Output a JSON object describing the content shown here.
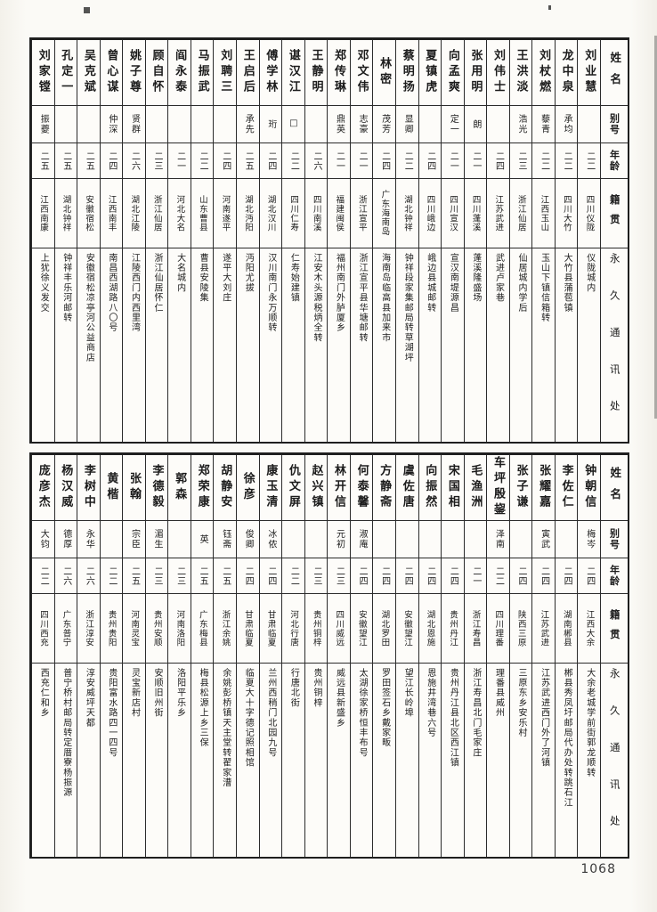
{
  "page": {
    "number": "1068",
    "headers": {
      "name": "姓名",
      "alias": "别号",
      "age": "年龄",
      "native_place": "籍贯",
      "address": "永久通讯处"
    }
  },
  "table_top": {
    "persons": [
      {
        "name": "刘业慧",
        "alias": "",
        "age": "二二",
        "native_place": "四川仪陇",
        "address": "仪陇城内"
      },
      {
        "name": "龙中泉",
        "alias": "承均",
        "age": "二二",
        "native_place": "四川大竹",
        "address": "大竹县蒲苞镇"
      },
      {
        "name": "刘杖燃",
        "alias": "藜青",
        "age": "二二",
        "native_place": "江西玉山",
        "address": "玉山下镇信箱转"
      },
      {
        "name": "王洪淡",
        "alias": "浩光",
        "age": "二三",
        "native_place": "浙江仙居",
        "address": "仙居城内学后"
      },
      {
        "name": "刘伟士",
        "alias": "",
        "age": "二四",
        "native_place": "江苏武进",
        "address": "武进卢家巷"
      },
      {
        "name": "张用明",
        "alias": "朗",
        "age": "二一",
        "native_place": "四川蓬溪",
        "address": "蓬溪隆盛场"
      },
      {
        "name": "向孟爽",
        "alias": "定一",
        "age": "二一",
        "native_place": "四川宣汉",
        "address": "宣汉南堤源昌"
      },
      {
        "name": "夏镇虎",
        "alias": "",
        "age": "二四",
        "native_place": "四川峨边",
        "address": "峨边县城邮转"
      },
      {
        "name": "蔡明扬",
        "alias": "显卿",
        "age": "二二",
        "native_place": "湖北钟祥",
        "address": "钟祥段家集邮局转草湖坪"
      },
      {
        "name": "林密",
        "alias": "茂芳",
        "age": "二四",
        "native_place": "广东海南岛",
        "address": "海南岛临高县加来市"
      },
      {
        "name": "邓文伟",
        "alias": "志豪",
        "age": "二一",
        "native_place": "浙江宣平",
        "address": "浙江宣平县华塘邮转"
      },
      {
        "name": "郑传琳",
        "alias": "鼎英",
        "age": "二一",
        "native_place": "福建闽侯",
        "address": "福州南门外胪厦乡"
      },
      {
        "name": "王静明",
        "alias": "",
        "age": "二六",
        "native_place": "四川南溪",
        "address": "江安木头源税炳全转"
      },
      {
        "name": "谌汉江",
        "alias": "□",
        "age": "二二",
        "native_place": "四川仁寿",
        "address": "仁寿始建镇"
      },
      {
        "name": "傅学林",
        "alias": "珩",
        "age": "二四",
        "native_place": "湖北汉川",
        "address": "汉川南门永万顺转"
      },
      {
        "name": "王启后",
        "alias": "承先",
        "age": "二五",
        "native_place": "湖北沔阳",
        "address": "沔阳尤拔"
      },
      {
        "name": "刘聘三",
        "alias": "",
        "age": "二四",
        "native_place": "河南遂平",
        "address": "遂平大刘庄"
      },
      {
        "name": "马振武",
        "alias": "",
        "age": "二二",
        "native_place": "山东曹县",
        "address": "曹县安陵集"
      },
      {
        "name": "阎永泰",
        "alias": "",
        "age": "二一",
        "native_place": "河北大名",
        "address": "大名城内"
      },
      {
        "name": "顾自怀",
        "alias": "",
        "age": "二三",
        "native_place": "浙江仙居",
        "address": "浙江仙居怀仁"
      },
      {
        "name": "姚子尊",
        "alias": "贤群",
        "age": "二六",
        "native_place": "湖北江陵",
        "address": "江陵西门内西里湾"
      },
      {
        "name": "曾心谋",
        "alias": "仲深",
        "age": "二四",
        "native_place": "江西南丰",
        "address": "南昌西湖路八〇号"
      },
      {
        "name": "吴克斌",
        "alias": "",
        "age": "二五",
        "native_place": "安徽宿松",
        "address": "安徽宿松凉亭河公益商店"
      },
      {
        "name": "孔定一",
        "alias": "",
        "age": "二五",
        "native_place": "湖北钟祥",
        "address": "钟祥丰乐河邮转"
      },
      {
        "name": "刘家镗",
        "alias": "振夔",
        "age": "二五",
        "native_place": "江西南康",
        "address": "上犹徐义发交"
      }
    ]
  },
  "table_bottom": {
    "persons": [
      {
        "name": "钟朝信",
        "alias": "梅岑",
        "age": "二四",
        "native_place": "江西大余",
        "address": "大余老城学前街郭龙顺转"
      },
      {
        "name": "李佐仁",
        "alias": "",
        "age": "二四",
        "native_place": "湖南郴县",
        "address": "郴县秀凤圩邮局代办处转跳石江"
      },
      {
        "name": "张耀嘉",
        "alias": "寅武",
        "age": "二四",
        "native_place": "江苏武进",
        "address": "江苏武进西门外了河镇"
      },
      {
        "name": "张子谦",
        "alias": "",
        "age": "二四",
        "native_place": "陕西三原",
        "address": "三原东乡安乐村"
      },
      {
        "name": "车坪殷鋆",
        "alias": "泽南",
        "age": "二二",
        "native_place": "四川理番",
        "address": "理番县威州"
      },
      {
        "name": "毛渔洲",
        "alias": "",
        "age": "二一",
        "native_place": "浙江寿昌",
        "address": "浙江寿昌北门毛家庄"
      },
      {
        "name": "宋国相",
        "alias": "",
        "age": "二四",
        "native_place": "贵州丹江",
        "address": "贵州丹江县北区西江镇"
      },
      {
        "name": "向振然",
        "alias": "",
        "age": "二四",
        "native_place": "湖北恩施",
        "address": "恩施井湾巷六号"
      },
      {
        "name": "虞佐唐",
        "alias": "",
        "age": "二四",
        "native_place": "安徽望江",
        "address": "望江长岭埠"
      },
      {
        "name": "方静斋",
        "alias": "",
        "age": "二四",
        "native_place": "湖北罗田",
        "address": "罗田签石乡戴家畈"
      },
      {
        "name": "何泰馨",
        "alias": "淑庵",
        "age": "二四",
        "native_place": "安徽望江",
        "address": "太湖徐家桥恒丰布号"
      },
      {
        "name": "林开信",
        "alias": "元初",
        "age": "二三",
        "native_place": "四川威远",
        "address": "威远县新盛乡"
      },
      {
        "name": "赵兴镇",
        "alias": "",
        "age": "二三",
        "native_place": "贵州铜梓",
        "address": "贵州铜梓"
      },
      {
        "name": "仇文屏",
        "alias": "",
        "age": "二二",
        "native_place": "河北行唐",
        "address": "行唐北街"
      },
      {
        "name": "康玉清",
        "alias": "冰侬",
        "age": "二四",
        "native_place": "甘肃临夏",
        "address": "兰州西稍门北园九号"
      },
      {
        "name": "徐彦",
        "alias": "俊卿",
        "age": "二四",
        "native_place": "甘肃临夏",
        "address": "临夏大十字德记照相馆"
      },
      {
        "name": "胡静安",
        "alias": "钰斋",
        "age": "二五",
        "native_place": "浙江余姚",
        "address": "余姚彭桥镇天主堂转翟家漕"
      },
      {
        "name": "郑荣康",
        "alias": "英",
        "age": "二五",
        "native_place": "广东梅县",
        "address": "梅县松源上乡三保"
      },
      {
        "name": "郭森",
        "alias": "",
        "age": "二三",
        "native_place": "河南洛阳",
        "address": "洛阳平乐乡"
      },
      {
        "name": "李德毅",
        "alias": "湄生",
        "age": "二三",
        "native_place": "贵州安顺",
        "address": "安顺旧州街"
      },
      {
        "name": "张翰",
        "alias": "宗臣",
        "age": "二五",
        "native_place": "河南灵宝",
        "address": "灵宝新店村"
      },
      {
        "name": "黄楷",
        "alias": "",
        "age": "二二",
        "native_place": "贵州贵阳",
        "address": "贵阳富水路四一四号"
      },
      {
        "name": "李树中",
        "alias": "永华",
        "age": "二六",
        "native_place": "浙江淳安",
        "address": "淳安威坪天都"
      },
      {
        "name": "杨汉威",
        "alias": "德厚",
        "age": "二六",
        "native_place": "广东普宁",
        "address": "普宁桥村邮局转定厝寮杨振源"
      },
      {
        "name": "庞彦杰",
        "alias": "大钧",
        "age": "二二",
        "native_place": "四川西充",
        "address": "西充仁和乡"
      }
    ]
  }
}
